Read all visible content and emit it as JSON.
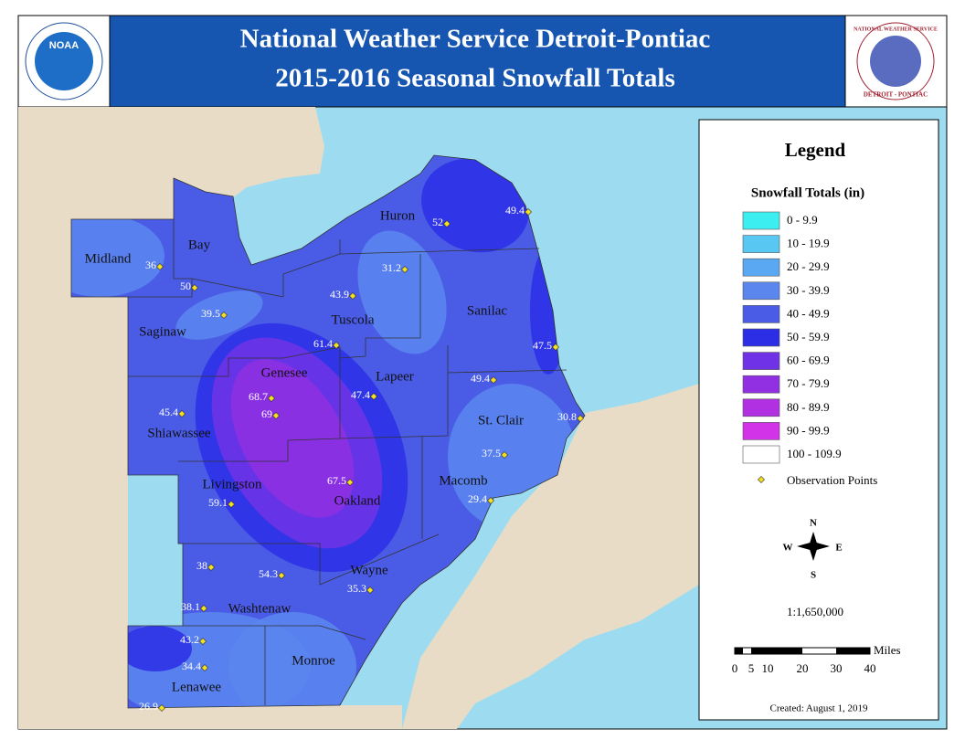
{
  "header": {
    "title": "National Weather Service Detroit-Pontiac",
    "subtitle": "2015-2016 Seasonal Snowfall Totals",
    "left_logo": "NOAA",
    "right_logo_top": "NATIONAL WEATHER SERVICE",
    "right_logo_bottom": "DETROIT - PONTIAC"
  },
  "map": {
    "counties": [
      "Huron",
      "Midland",
      "Bay",
      "Tuscola",
      "Sanilac",
      "Saginaw",
      "Genesee",
      "Lapeer",
      "St. Clair",
      "Shiawassee",
      "Livingston",
      "Oakland",
      "Macomb",
      "Wayne",
      "Washtenaw",
      "Monroe",
      "Lenawee"
    ],
    "observations": [
      52,
      49.4,
      36,
      31.2,
      50,
      43.9,
      39.5,
      61.4,
      47.5,
      49.4,
      68.7,
      47.4,
      45.4,
      69,
      30.8,
      37.5,
      67.5,
      59.1,
      29.4,
      38,
      54.3,
      35.3,
      38.1,
      43.2,
      34.4,
      26.9
    ]
  },
  "legend": {
    "title": "Legend",
    "subtitle": "Snowfall Totals (in)",
    "classes": [
      {
        "label": "0 - 9.9",
        "color": "#3ceef0"
      },
      {
        "label": "10 - 19.9",
        "color": "#58c8f2"
      },
      {
        "label": "20 - 29.9",
        "color": "#5aa8f2"
      },
      {
        "label": "30 - 39.9",
        "color": "#5a86ee"
      },
      {
        "label": "40 - 49.9",
        "color": "#4a5ce6"
      },
      {
        "label": "50 - 59.9",
        "color": "#2c2ee6"
      },
      {
        "label": "60 - 69.9",
        "color": "#7032e6"
      },
      {
        "label": "70 - 79.9",
        "color": "#9030e2"
      },
      {
        "label": "80 - 89.9",
        "color": "#b030e2"
      },
      {
        "label": "90 - 99.9",
        "color": "#d232e8"
      },
      {
        "label": "100 - 109.9",
        "color": "#ffffff"
      }
    ],
    "points_label": "Observation Points",
    "compass": {
      "n": "N",
      "s": "S",
      "e": "E",
      "w": "W"
    },
    "scale": "1:1,650,000",
    "scalebar_unit": "Miles",
    "scalebar_ticks": [
      "0",
      "5",
      "10",
      "20",
      "30",
      "40"
    ],
    "created": "Created: August 1, 2019"
  }
}
